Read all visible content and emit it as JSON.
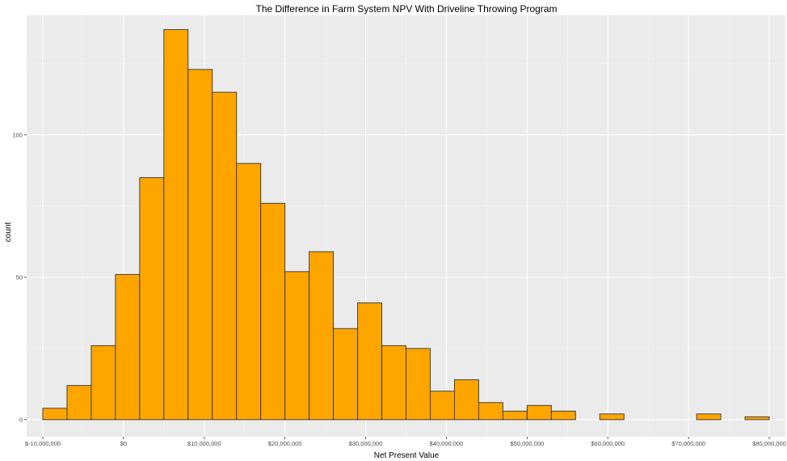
{
  "chart_data": {
    "type": "bar",
    "title": "The Difference in Farm System NPV With Driveline Throwing Program",
    "xlabel": "Net Present Value",
    "ylabel": "count",
    "grid": true,
    "legend": "none",
    "colors": {
      "panel": "#ebebeb",
      "grid_major": "#ffffff",
      "grid_minor": "#f5f5f5",
      "bar_fill": "#ffa500",
      "bar_stroke": "#333333",
      "tick_text": "#4d4d4d"
    },
    "xlim": [
      -12000000,
      82000000
    ],
    "ylim": [
      -6,
      142
    ],
    "bin_width": 3000000,
    "bin_start": -10000000,
    "bins": [
      {
        "left": -10000000,
        "right": -7000000,
        "count": 4
      },
      {
        "left": -7000000,
        "right": -4000000,
        "count": 12
      },
      {
        "left": -4000000,
        "right": -1000000,
        "count": 26
      },
      {
        "left": -1000000,
        "right": 2000000,
        "count": 51
      },
      {
        "left": 2000000,
        "right": 5000000,
        "count": 85
      },
      {
        "left": 5000000,
        "right": 8000000,
        "count": 137
      },
      {
        "left": 8000000,
        "right": 11000000,
        "count": 123
      },
      {
        "left": 11000000,
        "right": 14000000,
        "count": 115
      },
      {
        "left": 14000000,
        "right": 17000000,
        "count": 90
      },
      {
        "left": 17000000,
        "right": 20000000,
        "count": 76
      },
      {
        "left": 20000000,
        "right": 23000000,
        "count": 52
      },
      {
        "left": 23000000,
        "right": 26000000,
        "count": 59
      },
      {
        "left": 26000000,
        "right": 29000000,
        "count": 32
      },
      {
        "left": 29000000,
        "right": 32000000,
        "count": 41
      },
      {
        "left": 32000000,
        "right": 35000000,
        "count": 26
      },
      {
        "left": 35000000,
        "right": 38000000,
        "count": 25
      },
      {
        "left": 38000000,
        "right": 41000000,
        "count": 10
      },
      {
        "left": 41000000,
        "right": 44000000,
        "count": 14
      },
      {
        "left": 44000000,
        "right": 47000000,
        "count": 6
      },
      {
        "left": 47000000,
        "right": 50000000,
        "count": 3
      },
      {
        "left": 50000000,
        "right": 53000000,
        "count": 5
      },
      {
        "left": 53000000,
        "right": 56000000,
        "count": 3
      },
      {
        "left": 56000000,
        "right": 59000000,
        "count": 0
      },
      {
        "left": 59000000,
        "right": 62000000,
        "count": 2
      },
      {
        "left": 62000000,
        "right": 65000000,
        "count": 0
      },
      {
        "left": 65000000,
        "right": 68000000,
        "count": 0
      },
      {
        "left": 68000000,
        "right": 71000000,
        "count": 0
      },
      {
        "left": 71000000,
        "right": 74000000,
        "count": 2
      },
      {
        "left": 74000000,
        "right": 77000000,
        "count": 0
      },
      {
        "left": 77000000,
        "right": 80000000,
        "count": 1
      }
    ],
    "x_ticks": [
      {
        "value": -10000000,
        "label": "$-10,000,000"
      },
      {
        "value": 0,
        "label": "$0"
      },
      {
        "value": 10000000,
        "label": "$10,000,000"
      },
      {
        "value": 20000000,
        "label": "$20,000,000"
      },
      {
        "value": 30000000,
        "label": "$30,000,000"
      },
      {
        "value": 40000000,
        "label": "$40,000,000"
      },
      {
        "value": 50000000,
        "label": "$50,000,000"
      },
      {
        "value": 60000000,
        "label": "$60,000,000"
      },
      {
        "value": 70000000,
        "label": "$70,000,000"
      },
      {
        "value": 80000000,
        "label": "$80,000,000"
      }
    ],
    "y_ticks": [
      {
        "value": 0,
        "label": "0"
      },
      {
        "value": 50,
        "label": "50"
      },
      {
        "value": 100,
        "label": "100"
      }
    ]
  }
}
